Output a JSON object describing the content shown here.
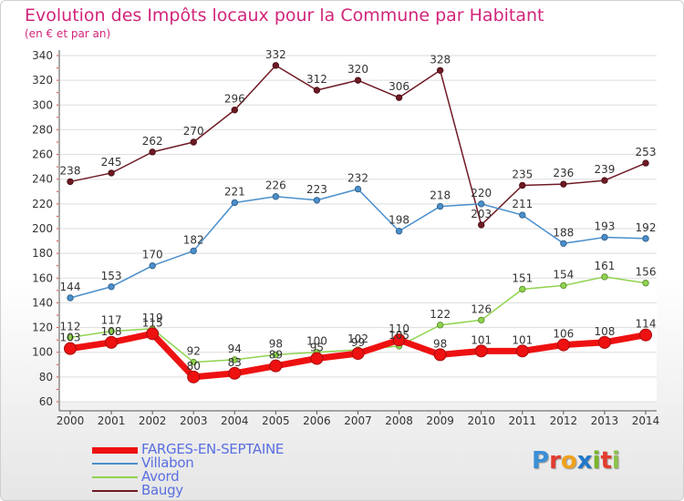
{
  "header": {
    "title": "Evolution des Impôts locaux pour la Commune par Habitant",
    "subtitle": "(en € et par an)"
  },
  "logo": {
    "letters": [
      "P",
      "r",
      "o",
      "x",
      "i",
      "t",
      "i"
    ],
    "colors": [
      "#3a8fd6",
      "#e23b2e",
      "#f0a21c",
      "#1f78c8",
      "#79b52a",
      "#e23b2e",
      "#8bc34a"
    ]
  },
  "chart_data": {
    "type": "line",
    "title": "Evolution des Impôts locaux pour la Commune par Habitant",
    "subtitle": "(en € et par an)",
    "xlabel": "",
    "ylabel": "",
    "x": [
      "2000",
      "2001",
      "2002",
      "2003",
      "2004",
      "2005",
      "2006",
      "2007",
      "2008",
      "2009",
      "2010",
      "2011",
      "2012",
      "2013",
      "2014"
    ],
    "ylim": [
      60,
      340
    ],
    "yticks": [
      60,
      80,
      100,
      120,
      140,
      160,
      180,
      200,
      220,
      240,
      260,
      280,
      300,
      320,
      340
    ],
    "grid": true,
    "legend_position": "bottom-left",
    "series": [
      {
        "name": "Baugy",
        "color": "#6e1a24",
        "values": [
          238,
          245,
          262,
          270,
          296,
          332,
          312,
          320,
          306,
          328,
          203,
          235,
          236,
          239,
          253
        ]
      },
      {
        "name": "Villabon",
        "color": "#4a8fcc",
        "values": [
          144,
          153,
          170,
          182,
          221,
          226,
          223,
          232,
          198,
          218,
          220,
          211,
          188,
          193,
          192
        ]
      },
      {
        "name": "Avord",
        "color": "#8fd44e",
        "values": [
          112,
          117,
          119,
          92,
          94,
          98,
          100,
          102,
          105,
          122,
          126,
          151,
          154,
          161,
          156
        ]
      },
      {
        "name": "FARGES-EN-SEPTAINE",
        "color": "#ee1111",
        "values": [
          103,
          108,
          115,
          80,
          83,
          89,
          95,
          99,
          110,
          98,
          101,
          101,
          106,
          108,
          114
        ]
      }
    ],
    "legend_order": [
      "FARGES-EN-SEPTAINE",
      "Villabon",
      "Avord",
      "Baugy"
    ]
  }
}
